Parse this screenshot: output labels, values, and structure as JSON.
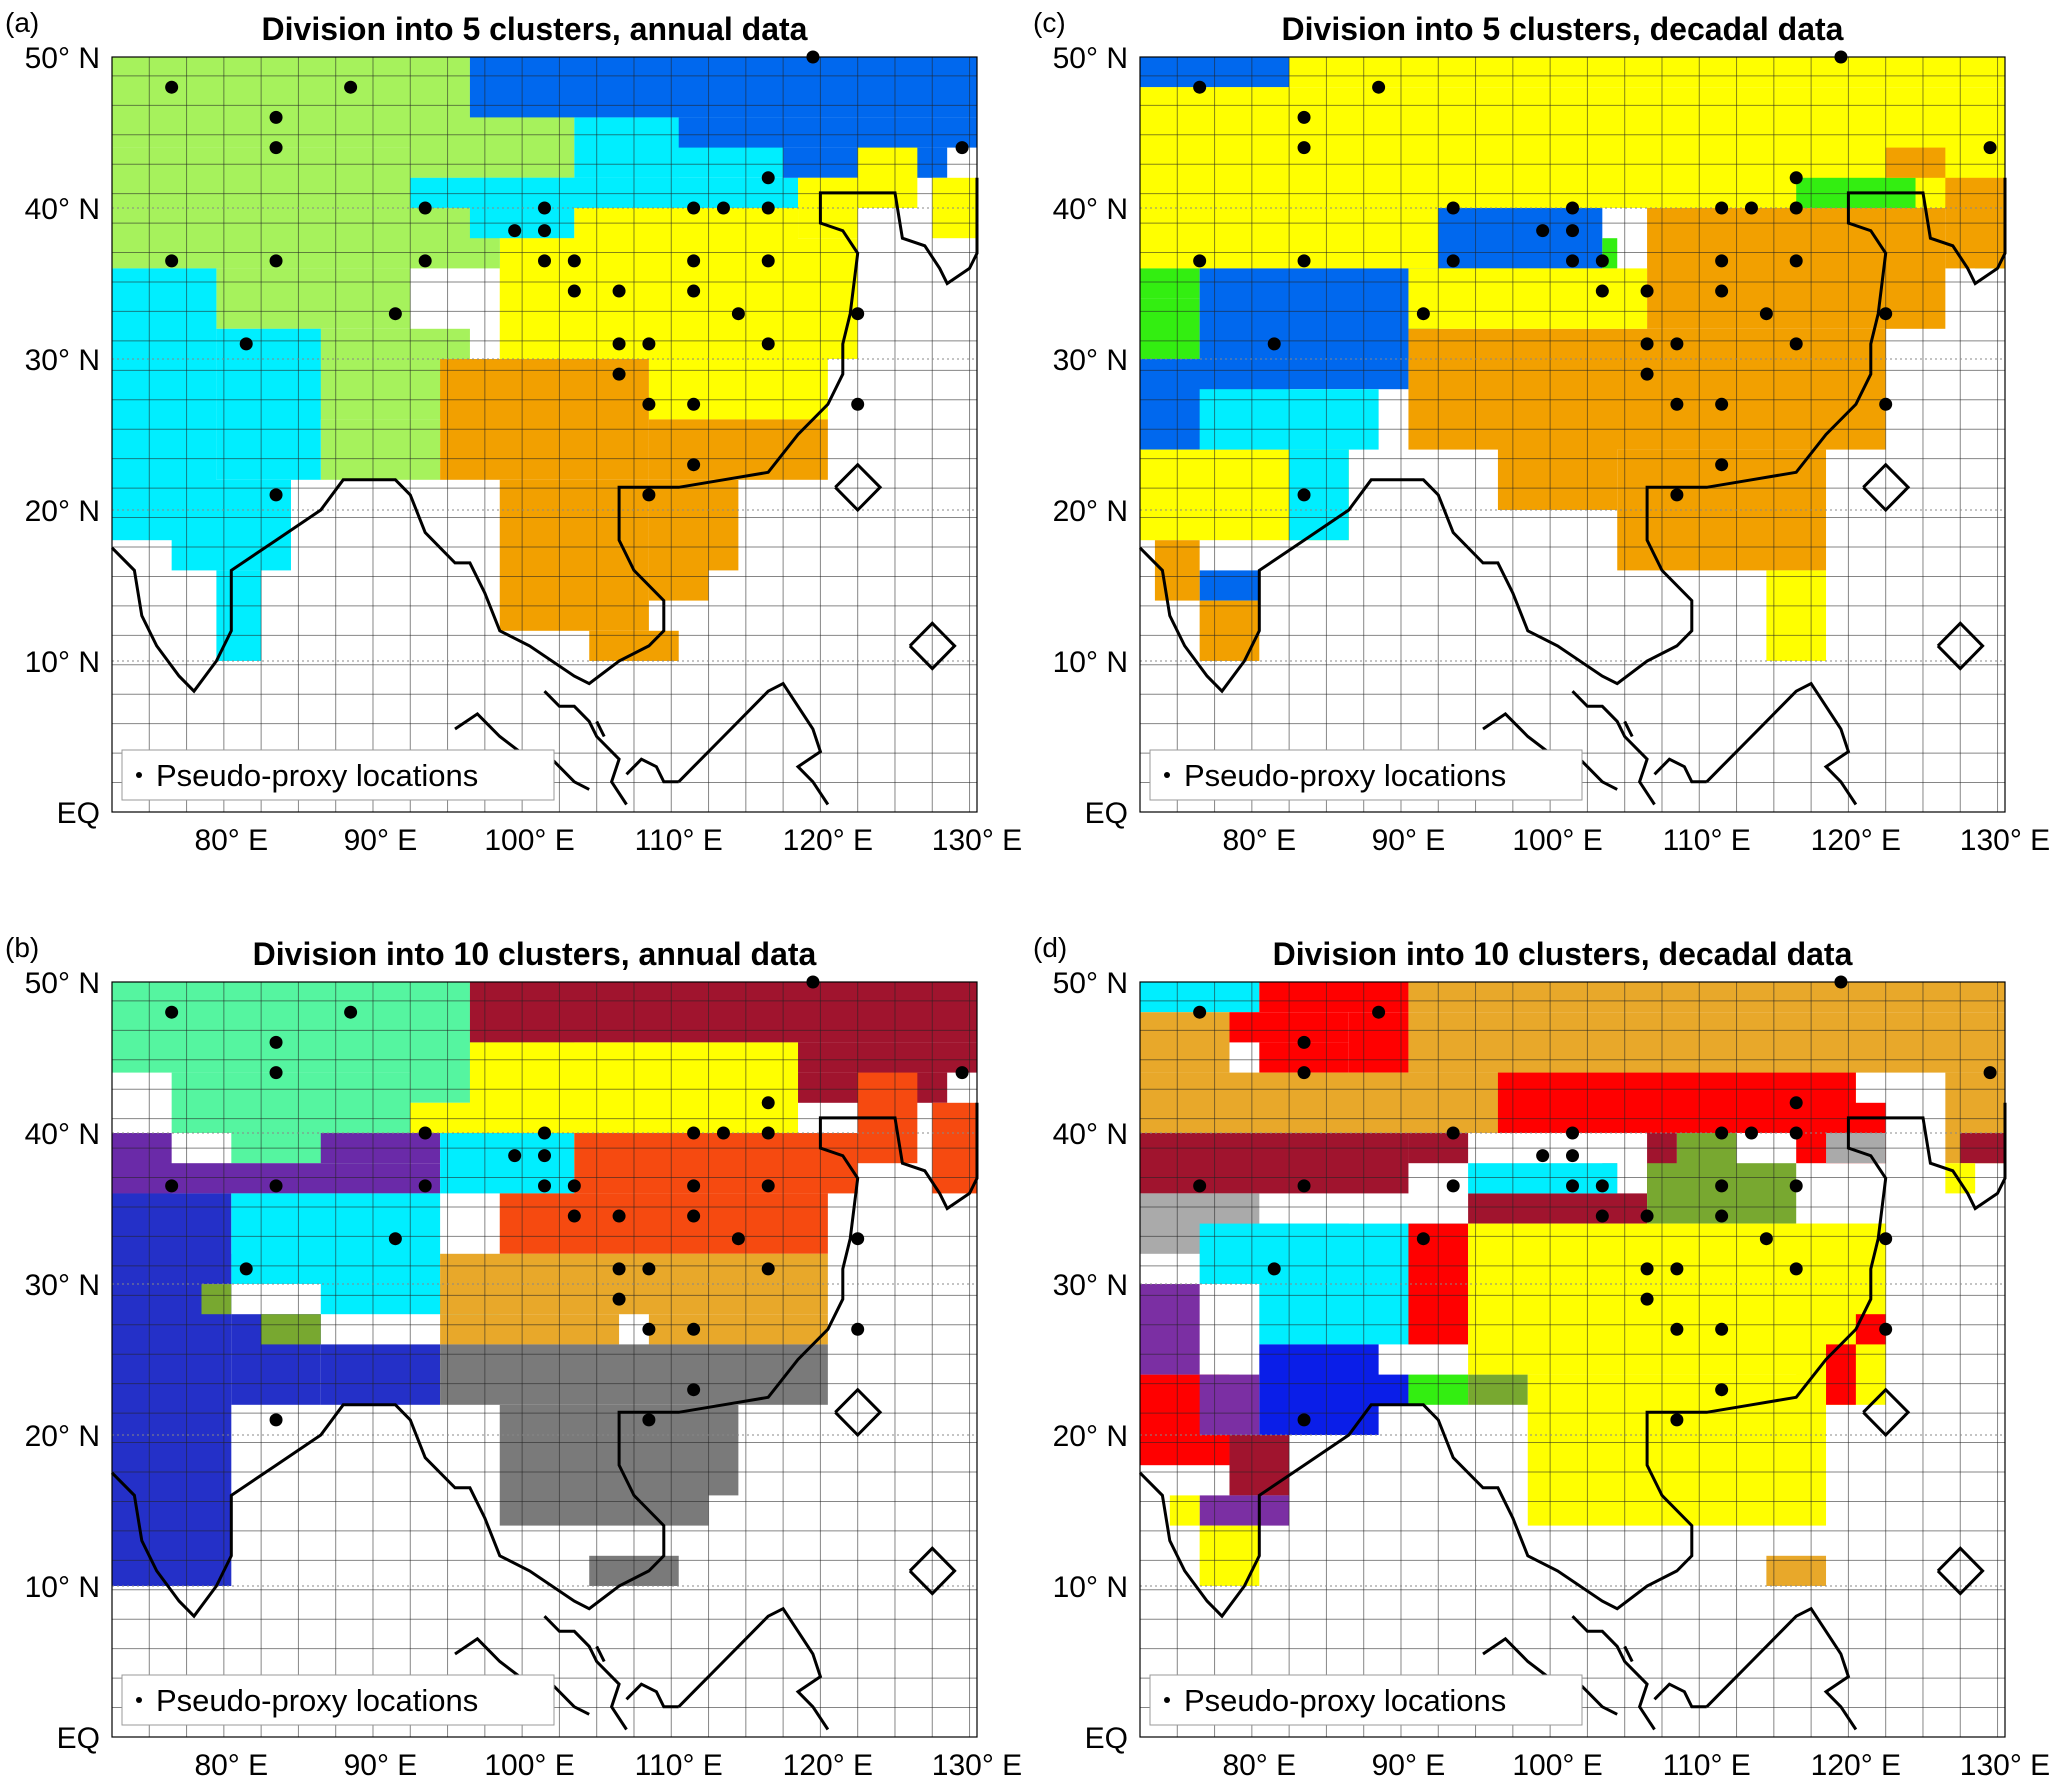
{
  "figure": {
    "tick_labels_lat": [
      "50° N",
      "40° N",
      "30° N",
      "20° N",
      "10° N",
      "EQ"
    ],
    "tick_labels_lon": [
      "80° E",
      "90° E",
      "100° E",
      "110° E",
      "120° E",
      "130° E"
    ],
    "legend_label": "Pseudo-proxy locations",
    "colors": {
      "lime": "#a6f25c",
      "cyan": "#00eeff",
      "blue": "#0068ee",
      "yellow": "#ffff00",
      "orange": "#f2a000",
      "green": "#33ee11",
      "mint": "#55f5a0",
      "darkred": "#a0142e",
      "purple": "#6a2aa8",
      "navy": "#2430c8",
      "olive": "#78a830",
      "redorange": "#f64a10",
      "gold": "#e8a82a",
      "gray": "#7a7a7a",
      "red": "#ff0000",
      "lightgray": "#aaaaaa",
      "blue2": "#0a1ee8",
      "purple2": "#7b2fa3"
    }
  },
  "panels": [
    {
      "tag": "(a)",
      "title": "Division into 5 clusters, annual data",
      "legend": "Pseudo-proxy locations"
    },
    {
      "tag": "(c)",
      "title": "Division into 5 clusters, decadal data",
      "legend": "Pseudo-proxy locations"
    },
    {
      "tag": "(b)",
      "title": "Division into 10 clusters, annual data",
      "legend": "Pseudo-proxy locations"
    },
    {
      "tag": "(d)",
      "title": "Division into 10 clusters, decadal data",
      "legend": "Pseudo-proxy locations"
    }
  ],
  "proxy_locations": [
    [
      76,
      48
    ],
    [
      83,
      46
    ],
    [
      83,
      44
    ],
    [
      88,
      48
    ],
    [
      76,
      36.5
    ],
    [
      83,
      36.5
    ],
    [
      93,
      40
    ],
    [
      93,
      36.5
    ],
    [
      91,
      33
    ],
    [
      81,
      31
    ],
    [
      83,
      21
    ],
    [
      101,
      40
    ],
    [
      99,
      38.5
    ],
    [
      101,
      38.5
    ],
    [
      101,
      36.5
    ],
    [
      103,
      36.5
    ],
    [
      103,
      34.5
    ],
    [
      106,
      34.5
    ],
    [
      111,
      40
    ],
    [
      113,
      40
    ],
    [
      116,
      40
    ],
    [
      116,
      42
    ],
    [
      111,
      36.5
    ],
    [
      111,
      34.5
    ],
    [
      116,
      36.5
    ],
    [
      114,
      33
    ],
    [
      106,
      31
    ],
    [
      108,
      31
    ],
    [
      106,
      29
    ],
    [
      108,
      27
    ],
    [
      111,
      27
    ],
    [
      116,
      31
    ],
    [
      122,
      33
    ],
    [
      122,
      27
    ],
    [
      111,
      23
    ],
    [
      108,
      21
    ],
    [
      119,
      50
    ],
    [
      129,
      44
    ]
  ],
  "maps": {
    "a": [
      [
        72,
        96,
        44,
        50,
        "lime"
      ],
      [
        96,
        103,
        46,
        50,
        "lime"
      ],
      [
        72,
        92,
        40,
        44,
        "lime"
      ],
      [
        92,
        103,
        42,
        46,
        "lime"
      ],
      [
        92,
        96,
        40,
        42,
        "lime"
      ],
      [
        72,
        98,
        36,
        40,
        "lime"
      ],
      [
        79,
        92,
        32,
        36,
        "lime"
      ],
      [
        82,
        96,
        26,
        32,
        "lime"
      ],
      [
        86,
        94,
        22,
        26,
        "lime"
      ],
      [
        72,
        79,
        18,
        36,
        "cyan"
      ],
      [
        79,
        86,
        22,
        32,
        "cyan"
      ],
      [
        76,
        84,
        16,
        22,
        "cyan"
      ],
      [
        79,
        82,
        10,
        16,
        "cyan"
      ],
      [
        103,
        117,
        42,
        46,
        "cyan"
      ],
      [
        96,
        110,
        40,
        42,
        "cyan"
      ],
      [
        92,
        118,
        40,
        42,
        "cyan"
      ],
      [
        96,
        103,
        38,
        40,
        "cyan"
      ],
      [
        98,
        103,
        36,
        38,
        "cyan"
      ],
      [
        96,
        130,
        46,
        50,
        "blue"
      ],
      [
        110,
        130,
        44,
        46,
        "blue"
      ],
      [
        117,
        128,
        42,
        44,
        "blue"
      ],
      [
        103,
        118,
        30,
        40,
        "yellow"
      ],
      [
        98,
        122,
        30,
        38,
        "yellow"
      ],
      [
        118,
        122,
        38,
        42,
        "yellow"
      ],
      [
        122,
        126,
        40,
        44,
        "yellow"
      ],
      [
        127,
        130,
        38,
        42,
        "yellow"
      ],
      [
        108,
        120,
        26,
        30,
        "yellow"
      ],
      [
        94,
        108,
        22,
        30,
        "orange"
      ],
      [
        108,
        120,
        22,
        26,
        "orange"
      ],
      [
        98,
        108,
        12,
        22,
        "orange"
      ],
      [
        108,
        112,
        14,
        22,
        "orange"
      ],
      [
        112,
        114,
        16,
        22,
        "orange"
      ],
      [
        104,
        110,
        10,
        12,
        "orange"
      ]
    ],
    "c": [
      [
        72,
        82,
        48,
        50,
        "blue"
      ],
      [
        82,
        130,
        48,
        50,
        "yellow"
      ],
      [
        72,
        130,
        40,
        48,
        "yellow"
      ],
      [
        72,
        98,
        36,
        40,
        "yellow"
      ],
      [
        72,
        76,
        34,
        36,
        "green"
      ],
      [
        72,
        76,
        30,
        34,
        "green"
      ],
      [
        76,
        92,
        30,
        36,
        "blue"
      ],
      [
        72,
        82,
        24,
        30,
        "blue"
      ],
      [
        82,
        90,
        28,
        30,
        "blue"
      ],
      [
        92,
        103,
        36,
        40,
        "blue"
      ],
      [
        103,
        104,
        36,
        38,
        "green"
      ],
      [
        116,
        124,
        38,
        42,
        "green"
      ],
      [
        128,
        130,
        36,
        40,
        "green"
      ],
      [
        106,
        126,
        32,
        40,
        "orange"
      ],
      [
        90,
        122,
        24,
        32,
        "orange"
      ],
      [
        104,
        118,
        16,
        24,
        "orange"
      ],
      [
        96,
        104,
        20,
        26,
        "orange"
      ],
      [
        126,
        130,
        36,
        42,
        "orange"
      ],
      [
        122,
        126,
        42,
        44,
        "orange"
      ],
      [
        72,
        86,
        18,
        24,
        "yellow"
      ],
      [
        76,
        88,
        24,
        28,
        "cyan"
      ],
      [
        82,
        86,
        18,
        24,
        "cyan"
      ],
      [
        76,
        80,
        14,
        16,
        "blue"
      ],
      [
        76,
        80,
        10,
        14,
        "orange"
      ],
      [
        73,
        76,
        14,
        18,
        "orange"
      ],
      [
        90,
        106,
        32,
        36,
        "yellow"
      ],
      [
        114,
        118,
        10,
        16,
        "yellow"
      ]
    ],
    "b": [
      [
        72,
        96,
        44,
        50,
        "mint"
      ],
      [
        96,
        103,
        46,
        50,
        "mint"
      ],
      [
        76,
        92,
        40,
        44,
        "mint"
      ],
      [
        92,
        103,
        42,
        46,
        "mint"
      ],
      [
        80,
        92,
        38,
        40,
        "mint"
      ],
      [
        96,
        130,
        46,
        50,
        "darkred"
      ],
      [
        110,
        130,
        44,
        46,
        "darkred"
      ],
      [
        117,
        128,
        42,
        44,
        "darkred"
      ],
      [
        72,
        76,
        36,
        40,
        "purple"
      ],
      [
        72,
        94,
        36,
        38,
        "purple"
      ],
      [
        86,
        94,
        38,
        40,
        "purple"
      ],
      [
        72,
        80,
        10,
        36,
        "navy"
      ],
      [
        80,
        84,
        30,
        32,
        "navy"
      ],
      [
        80,
        86,
        22,
        28,
        "navy"
      ],
      [
        86,
        94,
        22,
        26,
        "navy"
      ],
      [
        78,
        80,
        28,
        30,
        "olive"
      ],
      [
        82,
        86,
        26,
        28,
        "olive"
      ],
      [
        80,
        94,
        30,
        36,
        "cyan"
      ],
      [
        86,
        98,
        28,
        30,
        "cyan"
      ],
      [
        94,
        103,
        36,
        40,
        "cyan"
      ],
      [
        92,
        103,
        40,
        42,
        "yellow"
      ],
      [
        96,
        118,
        40,
        46,
        "yellow"
      ],
      [
        103,
        117,
        38,
        40,
        "yellow"
      ],
      [
        103,
        122,
        36,
        40,
        "redorange"
      ],
      [
        98,
        120,
        32,
        36,
        "redorange"
      ],
      [
        122,
        126,
        38,
        44,
        "redorange"
      ],
      [
        127,
        130,
        36,
        42,
        "redorange"
      ],
      [
        94,
        120,
        28,
        32,
        "gold"
      ],
      [
        94,
        106,
        26,
        28,
        "gold"
      ],
      [
        108,
        120,
        26,
        28,
        "gold"
      ],
      [
        94,
        120,
        22,
        26,
        "gray"
      ],
      [
        98,
        112,
        14,
        22,
        "gray"
      ],
      [
        112,
        114,
        16,
        22,
        "gray"
      ],
      [
        104,
        110,
        10,
        12,
        "gray"
      ]
    ],
    "d": [
      [
        72,
        80,
        48,
        50,
        "cyan"
      ],
      [
        80,
        90,
        48,
        50,
        "red"
      ],
      [
        90,
        130,
        48,
        50,
        "gold"
      ],
      [
        72,
        78,
        44,
        48,
        "gold"
      ],
      [
        78,
        86,
        46,
        48,
        "red"
      ],
      [
        86,
        90,
        44,
        48,
        "red"
      ],
      [
        80,
        86,
        44,
        46,
        "red"
      ],
      [
        90,
        130,
        44,
        48,
        "gold"
      ],
      [
        72,
        120,
        40,
        44,
        "gold"
      ],
      [
        96,
        120,
        40,
        44,
        "red"
      ],
      [
        116,
        122,
        38,
        42,
        "red"
      ],
      [
        126,
        130,
        38,
        44,
        "gold"
      ],
      [
        72,
        90,
        36,
        40,
        "darkred"
      ],
      [
        90,
        94,
        38,
        40,
        "darkred"
      ],
      [
        94,
        106,
        34,
        36,
        "darkred"
      ],
      [
        106,
        108,
        36,
        40,
        "darkred"
      ],
      [
        127,
        130,
        38,
        40,
        "darkred"
      ],
      [
        72,
        80,
        32,
        36,
        "lightgray"
      ],
      [
        118,
        122,
        38,
        40,
        "lightgray"
      ],
      [
        103,
        104,
        36,
        38,
        "lightgray"
      ],
      [
        80,
        94,
        26,
        34,
        "cyan"
      ],
      [
        94,
        104,
        36,
        38,
        "cyan"
      ],
      [
        76,
        86,
        30,
        34,
        "cyan"
      ],
      [
        106,
        116,
        34,
        38,
        "olive"
      ],
      [
        108,
        112,
        36,
        40,
        "olive"
      ],
      [
        90,
        94,
        26,
        34,
        "red"
      ],
      [
        72,
        78,
        18,
        24,
        "red"
      ],
      [
        78,
        82,
        16,
        20,
        "darkred"
      ],
      [
        72,
        76,
        24,
        30,
        "purple2"
      ],
      [
        76,
        80,
        20,
        24,
        "purple2"
      ],
      [
        76,
        82,
        14,
        16,
        "purple2"
      ],
      [
        80,
        88,
        20,
        26,
        "blue2"
      ],
      [
        86,
        90,
        22,
        24,
        "blue2"
      ],
      [
        90,
        94,
        22,
        24,
        "green"
      ],
      [
        94,
        98,
        22,
        24,
        "olive"
      ],
      [
        94,
        122,
        24,
        34,
        "yellow"
      ],
      [
        98,
        118,
        14,
        24,
        "yellow"
      ],
      [
        116,
        122,
        22,
        34,
        "yellow"
      ],
      [
        76,
        80,
        10,
        14,
        "yellow"
      ],
      [
        74,
        76,
        14,
        16,
        "yellow"
      ],
      [
        114,
        118,
        10,
        12,
        "gold"
      ],
      [
        120,
        122,
        26,
        28,
        "red"
      ],
      [
        118,
        120,
        22,
        26,
        "red"
      ],
      [
        126,
        128,
        36,
        38,
        "yellow"
      ]
    ]
  }
}
